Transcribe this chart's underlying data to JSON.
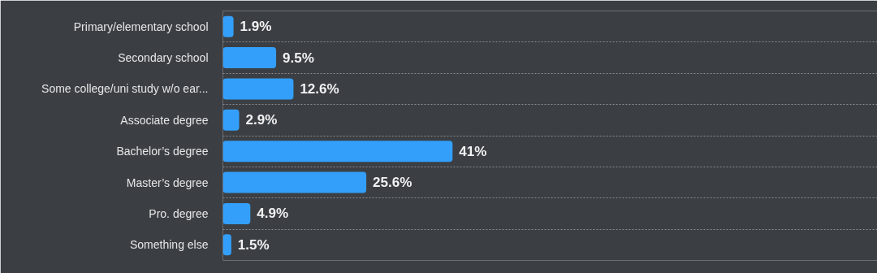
{
  "chart_data": {
    "type": "bar",
    "orientation": "horizontal",
    "categories": [
      "Primary/elementary school",
      "Secondary school",
      "Some college/uni study w/o ear...",
      "Associate degree",
      "Bachelor’s degree",
      "Master’s degree",
      "Pro. degree",
      "Something else"
    ],
    "values": [
      1.9,
      9.5,
      12.6,
      2.9,
      41,
      25.6,
      4.9,
      1.5
    ],
    "value_labels": [
      "1.9%",
      "9.5%",
      "12.6%",
      "2.9%",
      "41%",
      "25.6%",
      "4.9%",
      "1.5%"
    ],
    "color": "#339ffa",
    "grid": "y"
  }
}
